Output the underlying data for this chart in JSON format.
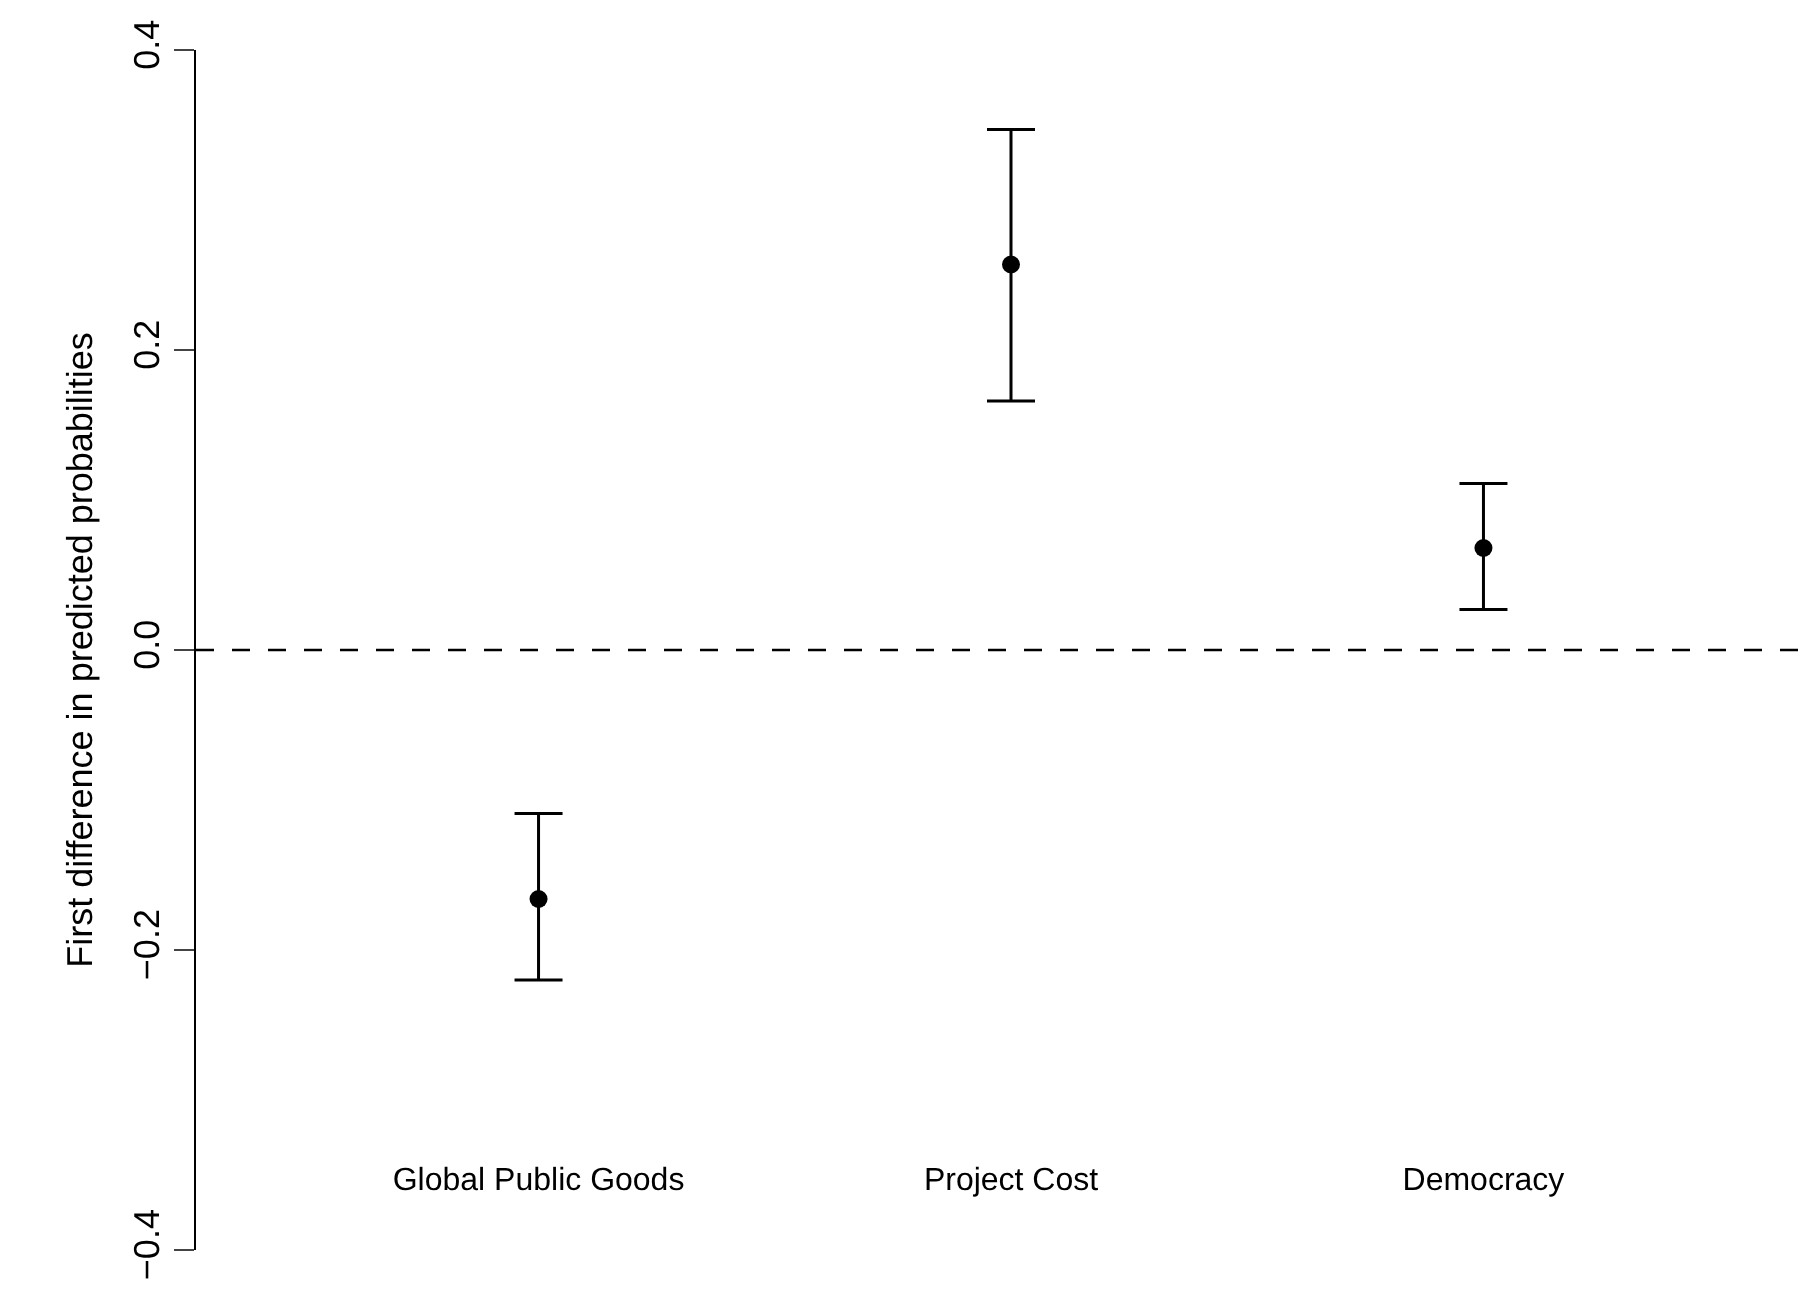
{
  "chart_data": {
    "type": "scatter",
    "ylabel": "First difference in predicted probabilities",
    "categories": [
      "Global Public Goods",
      "Project Cost",
      "Democracy"
    ],
    "series": [
      {
        "color": "#000000",
        "values": [
          -0.166,
          0.257,
          0.068
        ],
        "errors": [
          [
            -0.22,
            -0.109
          ],
          [
            0.166,
            0.347
          ],
          [
            0.027,
            0.111
          ]
        ]
      }
    ],
    "ylim": [
      -0.4,
      0.4
    ],
    "yticks": [
      -0.4,
      -0.2,
      {
        "value": 0,
        "label": "0.0"
      },
      0.2,
      0.4
    ],
    "ref_lines": [
      {
        "axis": "y",
        "value": 0,
        "line_style": "dashed",
        "color": "#000000"
      }
    ],
    "marker": "circle"
  }
}
